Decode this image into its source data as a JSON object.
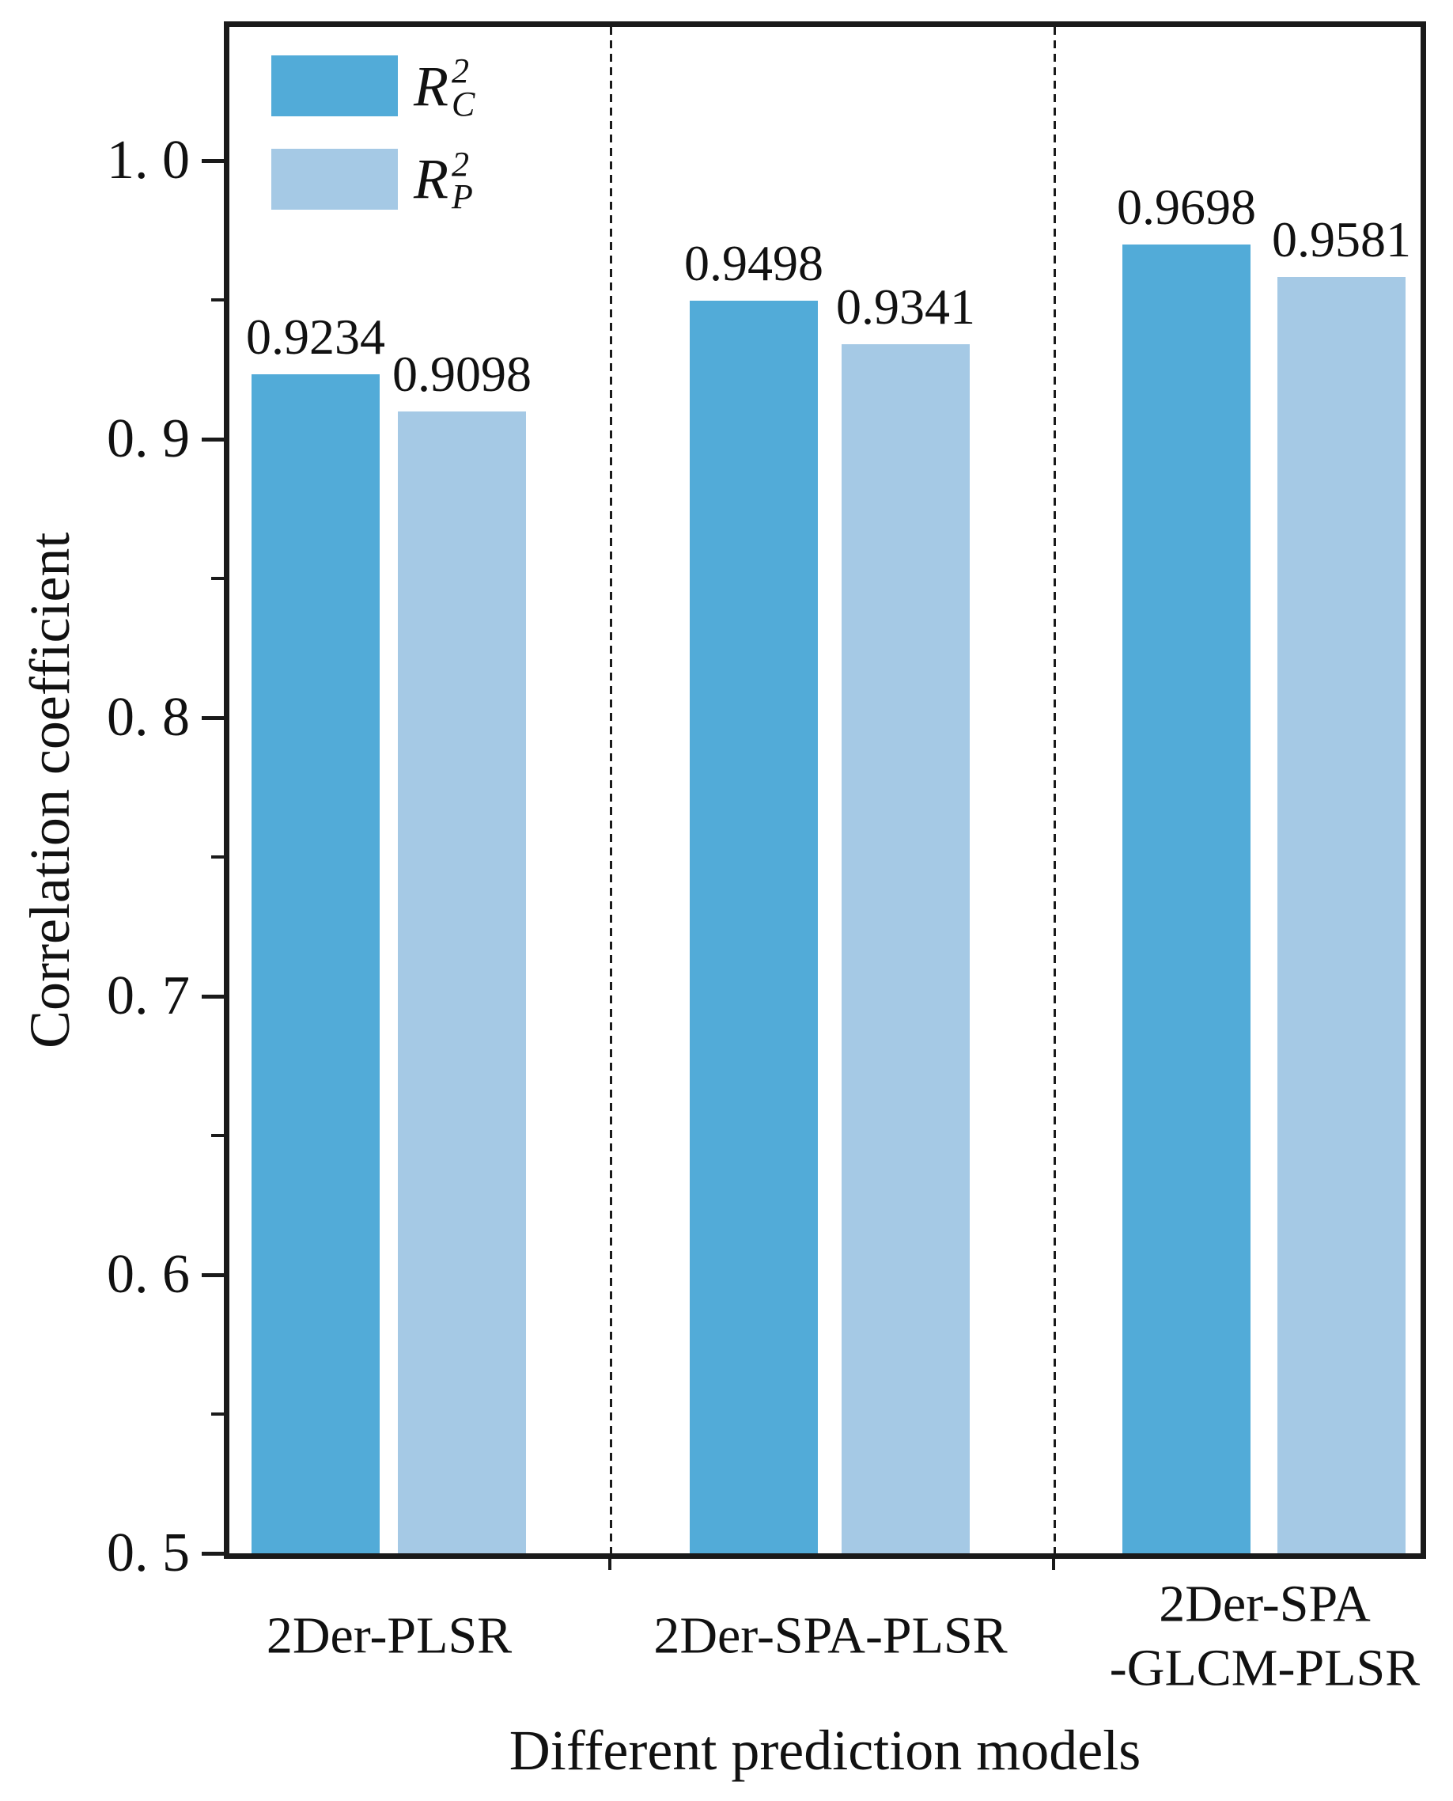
{
  "chart_data": {
    "type": "bar",
    "title": "",
    "xlabel": "Different prediction models",
    "ylabel": "Correlation coefficient",
    "categories": [
      [
        "2Der-PLSR"
      ],
      [
        "2Der-SPA-PLSR"
      ],
      [
        "2Der-SPA",
        "-GLCM-PLSR"
      ]
    ],
    "series": [
      {
        "name": "R2C",
        "symbol": {
          "base": "R",
          "sup": "2",
          "sub": "C"
        },
        "color": "#52abd8",
        "values": [
          0.9234,
          0.9498,
          0.9698
        ],
        "value_labels": [
          "0.9234",
          "0.9498",
          "0.9698"
        ]
      },
      {
        "name": "R2P",
        "symbol": {
          "base": "R",
          "sup": "2",
          "sub": "P"
        },
        "color": "#a5c9e5",
        "values": [
          0.9098,
          0.9341,
          0.9581
        ],
        "value_labels": [
          "0.9098",
          "0.9341",
          "0.9581"
        ]
      }
    ],
    "ylim": [
      0.5,
      1.048
    ],
    "ymajor_ticks": [
      1.0,
      0.9,
      0.8,
      0.7,
      0.6,
      0.5
    ],
    "ymajor_labels": [
      "1. 0",
      "0. 9",
      "0. 8",
      "0. 7",
      "0. 6",
      "0. 5"
    ],
    "yminor_ticks": [
      0.95,
      0.85,
      0.75,
      0.65,
      0.55
    ],
    "legend_position": "top-left",
    "group_separator_style": "dashed",
    "axis_color": "#1a1a1a",
    "grid": false
  }
}
